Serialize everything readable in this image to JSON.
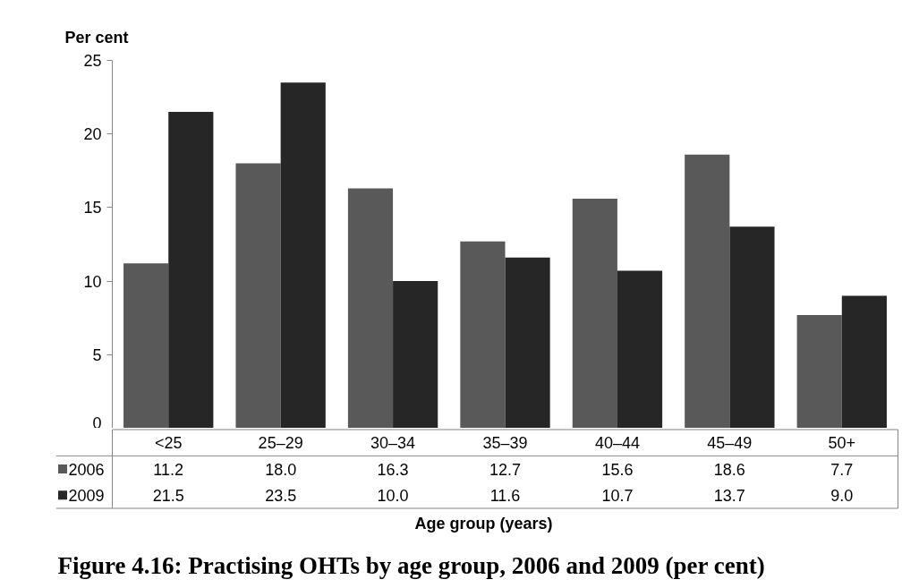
{
  "chart_data": {
    "type": "bar",
    "title": "Figure 4.16: Practising OHTs by age group, 2006 and 2009 (per cent)",
    "xlabel": "Age group (years)",
    "ylabel": "Per cent",
    "categories": [
      "<25",
      "25–29",
      "30–34",
      "35–39",
      "40–44",
      "45–49",
      "50+"
    ],
    "series": [
      {
        "name": "2006",
        "color": "#595959",
        "values": [
          11.2,
          18.0,
          16.3,
          12.7,
          15.6,
          18.6,
          7.7
        ],
        "value_labels": [
          "11.2",
          "18.0",
          "16.3",
          "12.7",
          "15.6",
          "18.6",
          "7.7"
        ]
      },
      {
        "name": "2009",
        "color": "#262626",
        "values": [
          21.5,
          23.5,
          10.0,
          11.6,
          10.7,
          13.7,
          9.0
        ],
        "value_labels": [
          "21.5",
          "23.5",
          "10.0",
          "11.6",
          "10.7",
          "13.7",
          "9.0"
        ]
      }
    ],
    "ylim": [
      0,
      25
    ],
    "yticks": [
      0,
      5,
      10,
      15,
      20,
      25
    ],
    "grid": false,
    "legend": "bottom left"
  }
}
